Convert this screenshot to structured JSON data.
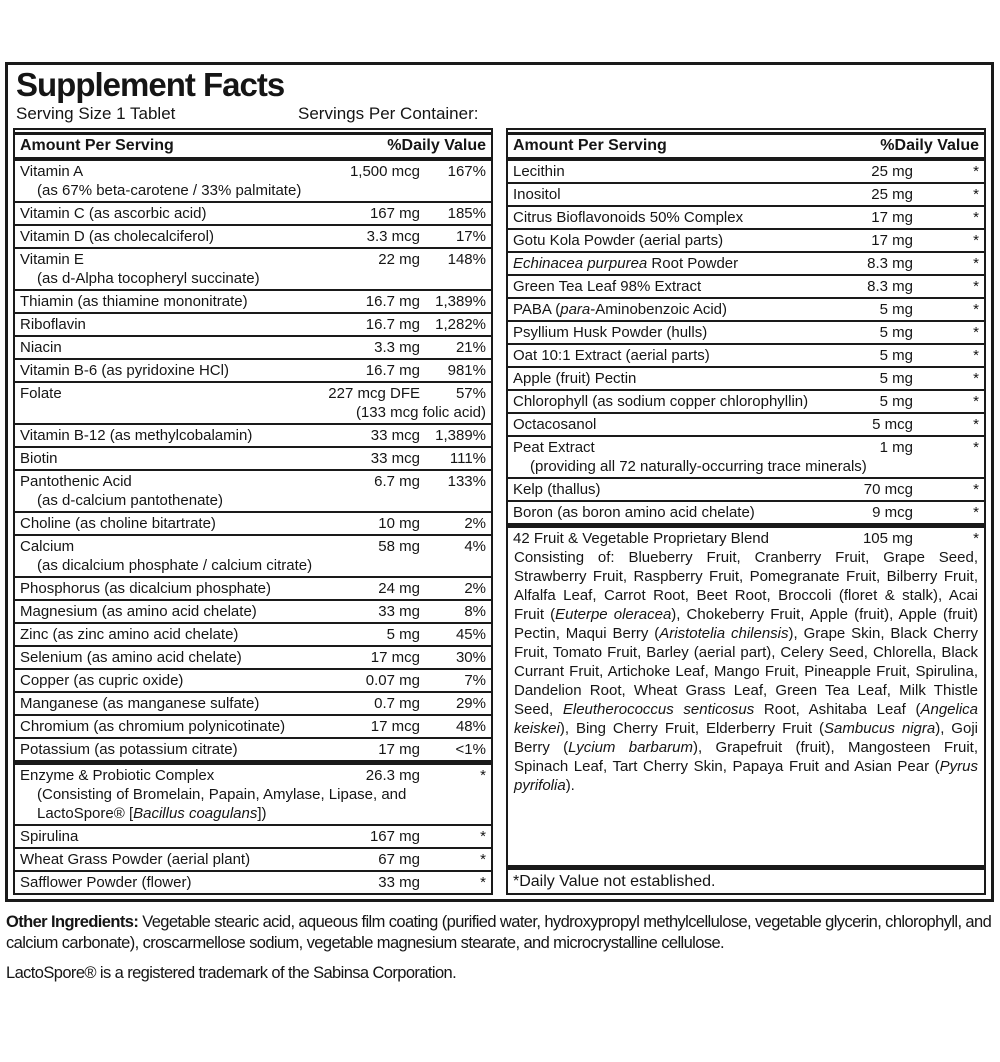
{
  "header": {
    "title": "Supplement Facts",
    "serving_size": "Serving Size 1 Tablet",
    "servings_per_container": "Servings Per Container:"
  },
  "table_header": {
    "amount_label": "Amount Per Serving",
    "dv_label": "%Daily Value"
  },
  "columns": {
    "left": {
      "rows": [
        {
          "name": "Vitamin A",
          "amount": "1,500 mcg",
          "dv": "167%",
          "sub": "(as 67% beta-carotene / 33% palmitate)"
        },
        {
          "name": "Vitamin C (as ascorbic acid)",
          "amount": "167 mg",
          "dv": "185%"
        },
        {
          "name": "Vitamin D (as cholecalciferol)",
          "amount": "3.3 mcg",
          "dv": "17%"
        },
        {
          "name": "Vitamin E",
          "amount": "22 mg",
          "dv": "148%",
          "sub": "(as d-Alpha tocopheryl succinate)"
        },
        {
          "name": "Thiamin (as thiamine mononitrate)",
          "amount": "16.7 mg",
          "dv": "1,389%"
        },
        {
          "name": "Riboflavin",
          "amount": "16.7 mg",
          "dv": "1,282%"
        },
        {
          "name": "Niacin",
          "amount": "3.3 mg",
          "dv": "21%"
        },
        {
          "name": "Vitamin B-6 (as pyridoxine HCl)",
          "amount": "16.7 mg",
          "dv": "981%"
        },
        {
          "name": "Folate",
          "amount": "227 mcg DFE",
          "dv": "57%",
          "sub": "(133 mcg folic acid)",
          "sub_align": "right"
        },
        {
          "name": "Vitamin B-12 (as methylcobalamin)",
          "amount": "33 mcg",
          "dv": "1,389%"
        },
        {
          "name": "Biotin",
          "amount": "33 mcg",
          "dv": "111%"
        },
        {
          "name": "Pantothenic Acid",
          "amount": "6.7 mg",
          "dv": "133%",
          "sub": "(as d-calcium pantothenate)"
        },
        {
          "name": "Choline (as choline bitartrate)",
          "amount": "10 mg",
          "dv": "2%"
        },
        {
          "name": "Calcium",
          "amount": "58 mg",
          "dv": "4%",
          "sub": "(as dicalcium phosphate / calcium citrate)"
        },
        {
          "name": "Phosphorus (as dicalcium phosphate)",
          "amount": "24 mg",
          "dv": "2%"
        },
        {
          "name": "Magnesium (as amino acid chelate)",
          "amount": "33 mg",
          "dv": "8%"
        },
        {
          "name": "Zinc (as zinc amino acid chelate)",
          "amount": "5 mg",
          "dv": "45%"
        },
        {
          "name": "Selenium (as amino acid chelate)",
          "amount": "17 mcg",
          "dv": "30%"
        },
        {
          "name": "Copper (as cupric oxide)",
          "amount": "0.07 mg",
          "dv": "7%"
        },
        {
          "name": "Manganese (as manganese sulfate)",
          "amount": "0.7 mg",
          "dv": "29%"
        },
        {
          "name": "Chromium (as chromium polynicotinate)",
          "amount": "17 mcg",
          "dv": "48%"
        },
        {
          "name": "Potassium (as potassium citrate)",
          "amount": "17 mg",
          "dv": "<1%"
        },
        {
          "name": "Enzyme & Probiotic Complex",
          "amount": "26.3 mg",
          "dv": "*",
          "thick": true,
          "sub": "(Consisting of Bromelain, Papain, Amylase, Lipase, and LactoSpore® [*Bacillus coagulans*])"
        },
        {
          "name": "Spirulina",
          "amount": "167 mg",
          "dv": "*"
        },
        {
          "name": "Wheat Grass Powder (aerial plant)",
          "amount": "67 mg",
          "dv": "*"
        },
        {
          "name": "Safflower Powder (flower)",
          "amount": "33 mg",
          "dv": "*"
        }
      ]
    },
    "right": {
      "rows": [
        {
          "name": "Lecithin",
          "amount": "25 mg",
          "dv": "*"
        },
        {
          "name": "Inositol",
          "amount": "25 mg",
          "dv": "*"
        },
        {
          "name": "Citrus Bioflavonoids 50% Complex",
          "amount": "17 mg",
          "dv": "*"
        },
        {
          "name": "Gotu Kola Powder (aerial parts)",
          "amount": "17 mg",
          "dv": "*"
        },
        {
          "name": "*Echinacea purpurea* Root Powder",
          "amount": "8.3 mg",
          "dv": "*"
        },
        {
          "name": "Green Tea Leaf 98% Extract",
          "amount": "8.3 mg",
          "dv": "*"
        },
        {
          "name": "PABA (*para*-Aminobenzoic Acid)",
          "amount": "5 mg",
          "dv": "*"
        },
        {
          "name": "Psyllium Husk Powder (hulls)",
          "amount": "5 mg",
          "dv": "*"
        },
        {
          "name": "Oat 10:1 Extract (aerial parts)",
          "amount": "5 mg",
          "dv": "*"
        },
        {
          "name": "Apple (fruit) Pectin",
          "amount": "5 mg",
          "dv": "*"
        },
        {
          "name": "Chlorophyll (as sodium copper chlorophyllin)",
          "amount": "5 mg",
          "dv": "*"
        },
        {
          "name": "Octacosanol",
          "amount": "5 mcg",
          "dv": "*"
        },
        {
          "name": "Peat Extract",
          "amount": "1 mg",
          "dv": "*",
          "sub": "(providing all 72 naturally-occurring trace minerals)"
        },
        {
          "name": "Kelp (thallus)",
          "amount": "70 mcg",
          "dv": "*"
        },
        {
          "name": "Boron (as boron amino acid chelate)",
          "amount": "9 mcg",
          "dv": "*"
        },
        {
          "name": "42 Fruit & Vegetable Proprietary Blend",
          "amount": "105 mg",
          "dv": "*",
          "thick": true,
          "paragraph": " Consisting of: Blueberry Fruit, Cranberry Fruit, Grape Seed, Strawberry Fruit, Raspberry Fruit, Pomegranate Fruit, Bilberry Fruit, Alfalfa Leaf, Carrot Root, Beet Root, Broccoli (floret & stalk), Acai Fruit (*Euterpe oleracea*), Chokeberry Fruit, Apple (fruit), Apple (fruit) Pectin, Maqui Berry (*Aristotelia chilensis*), Grape Skin, Black Cherry Fruit, Tomato Fruit, Barley (aerial part), Celery Seed, Chlorella, Black Currant Fruit, Artichoke Leaf, Mango Fruit, Pineapple Fruit, Spirulina, Dandelion Root, Wheat Grass Leaf, Green Tea Leaf, Milk Thistle Seed, *Eleutherococcus senticosus* Root, Ashitaba Leaf (*Angelica keiskei*), Bing Cherry Fruit, Elderberry Fruit (*Sambucus nigra*), Goji Berry (*Lycium barbarum*), Grapefruit (fruit), Mangosteen Fruit, Spinach Leaf, Tart Cherry Skin, Papaya Fruit and Asian Pear (*Pyrus pyrifolia*)."
        },
        {
          "name": "*Daily Value not established.",
          "footnote": true
        }
      ],
      "footnote": "*Daily Value not established."
    }
  },
  "footer": {
    "other_ingredients_label": "Other Ingredients:",
    "other_ingredients_text": " Vegetable stearic acid, aqueous film coating (purified water, hydroxypropyl methylcellulose, vegetable glycerin, chlorophyll, and calcium carbonate), croscarmellose sodium, vegetable magnesium stearate, and microcrystalline cellulose.",
    "trademark": "LactoSpore® is a registered trademark of the Sabinsa Corporation."
  },
  "colors": {
    "ink": "#1a1a1a",
    "background": "#ffffff"
  }
}
